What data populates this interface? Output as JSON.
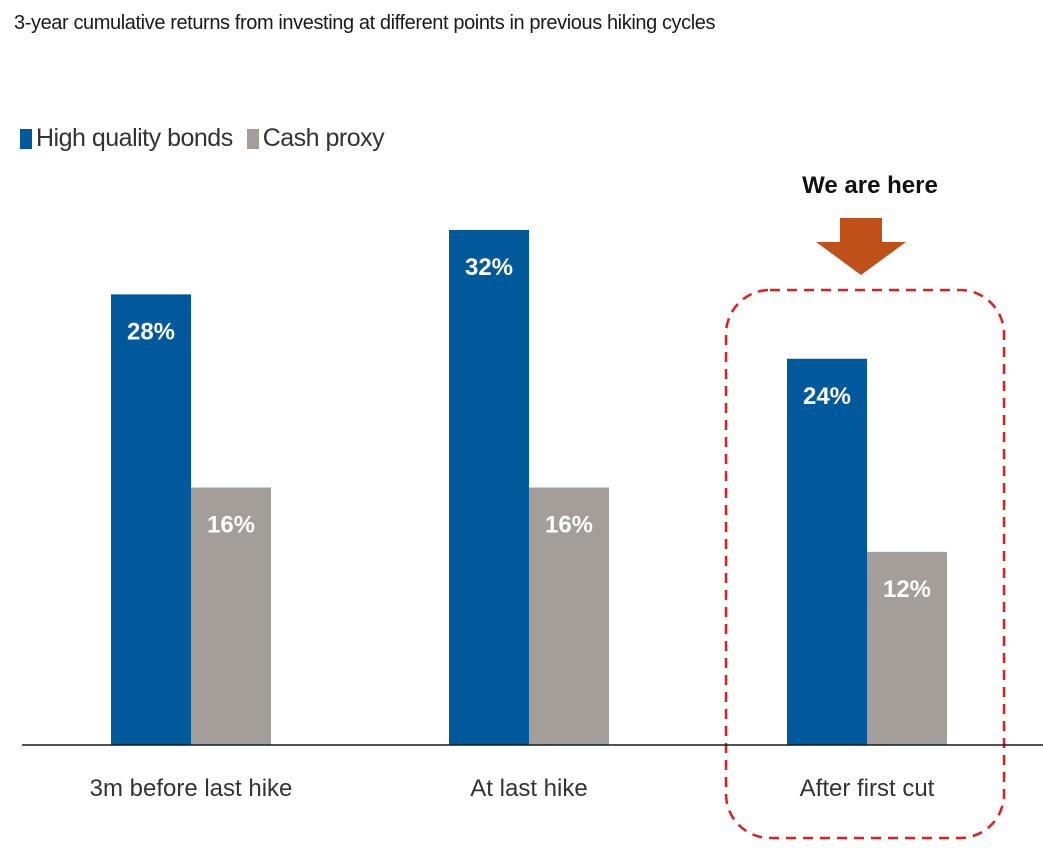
{
  "chart_data": {
    "type": "bar",
    "title": "3-year cumulative returns from investing at different points in previous hiking cycles",
    "categories": [
      "3m before last hike",
      "At last hike",
      "After first cut"
    ],
    "series": [
      {
        "name": "High quality bonds",
        "values": [
          28,
          32,
          24
        ],
        "labels": [
          "28%",
          "32%",
          "24%"
        ],
        "color": "#00599b"
      },
      {
        "name": "Cash proxy",
        "values": [
          16,
          16,
          12
        ],
        "labels": [
          "16%",
          "16%",
          "12%"
        ],
        "color": "#a39e9a"
      }
    ],
    "ylim": [
      0,
      32
    ],
    "xlabel": "",
    "ylabel": "",
    "grid": false,
    "legend_position": "top-left",
    "annotation": {
      "text": "We are here",
      "target_category": "After first cut",
      "arrow_color": "#c0501a",
      "box_color": "#e01e1e"
    }
  }
}
